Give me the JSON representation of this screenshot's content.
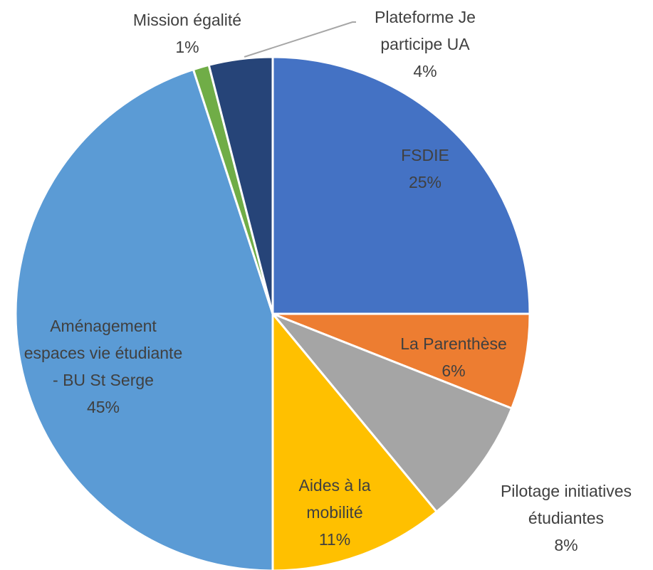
{
  "chart_data": {
    "type": "pie",
    "categories": [
      "FSDIE",
      "La Parenthèse",
      "Pilotage initiatives étudiantes",
      "Aides à la mobilité",
      "Aménagement espaces vie étudiante - BU St Serge",
      "Mission égalité",
      "Plateforme Je participe UA"
    ],
    "values": [
      25,
      6,
      8,
      11,
      45,
      1,
      4
    ],
    "value_labels": [
      "25%",
      "6%",
      "8%",
      "11%",
      "45%",
      "1%",
      "4%"
    ],
    "colors": [
      "#4472c4",
      "#ed7d31",
      "#a5a5a5",
      "#ffc000",
      "#5b9bd5",
      "#70ad47",
      "#264478"
    ]
  }
}
